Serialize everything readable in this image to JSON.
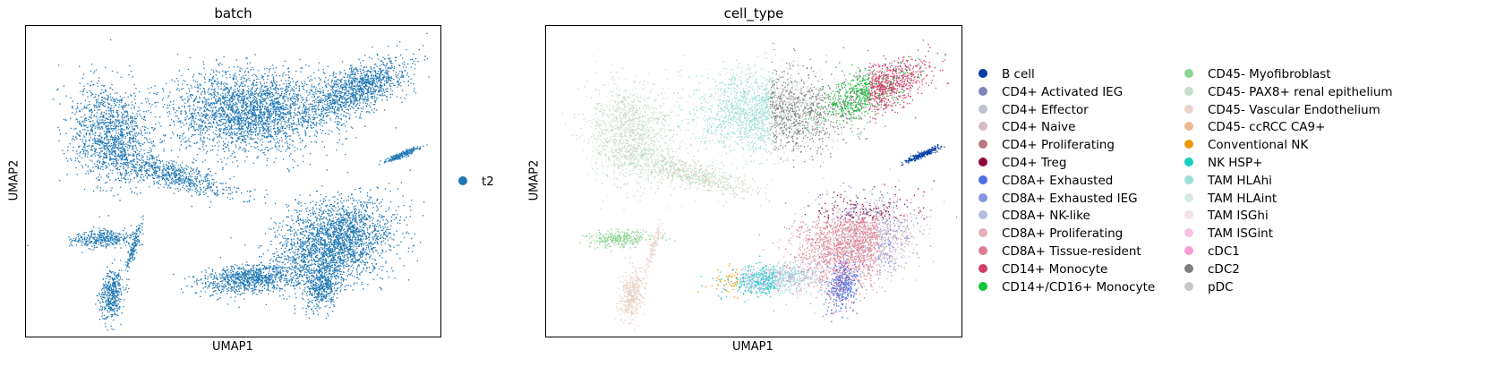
{
  "chart_data": [
    {
      "type": "scatter",
      "title": "batch",
      "xlabel": "UMAP1",
      "ylabel": "UMAP2",
      "grid": false,
      "legend_position": "right",
      "legend": [
        {
          "label": "t2",
          "color": "#1f77b4"
        }
      ]
    },
    {
      "type": "scatter",
      "title": "cell_type",
      "xlabel": "UMAP1",
      "ylabel": "UMAP2",
      "grid": false,
      "legend_position": "right",
      "legend": [
        {
          "label": "B cell",
          "color": "#023fa5"
        },
        {
          "label": "CD4+ Activated IEG",
          "color": "#7d87b9"
        },
        {
          "label": "CD4+ Effector",
          "color": "#bec1d4"
        },
        {
          "label": "CD4+ Naive",
          "color": "#d6bcc0"
        },
        {
          "label": "CD4+ Proliferating",
          "color": "#bb7784"
        },
        {
          "label": "CD4+ Treg",
          "color": "#8e063b"
        },
        {
          "label": "CD8A+ Exhausted",
          "color": "#4a6fe3"
        },
        {
          "label": "CD8A+ Exhausted IEG",
          "color": "#8595e1"
        },
        {
          "label": "CD8A+ NK-like",
          "color": "#b5bbe3"
        },
        {
          "label": "CD8A+ Proliferating",
          "color": "#e6afb9"
        },
        {
          "label": "CD8A+ Tissue-resident",
          "color": "#e07b91"
        },
        {
          "label": "CD14+ Monocyte",
          "color": "#d33f6a"
        },
        {
          "label": "CD14+/CD16+ Monocyte",
          "color": "#11c638"
        },
        {
          "label": "CD45- Myofibroblast",
          "color": "#8dd593"
        },
        {
          "label": "CD45- PAX8+ renal epithelium",
          "color": "#c6dec7"
        },
        {
          "label": "CD45- Vascular Endothelium",
          "color": "#ead3c6"
        },
        {
          "label": "CD45- ccRCC CA9+",
          "color": "#f0b98d"
        },
        {
          "label": "Conventional NK",
          "color": "#ef9708"
        },
        {
          "label": "NK HSP+",
          "color": "#0fcfc0"
        },
        {
          "label": "TAM HLAhi",
          "color": "#9cded6"
        },
        {
          "label": "TAM HLAint",
          "color": "#d5eae7"
        },
        {
          "label": "TAM ISGhi",
          "color": "#f3e1eb"
        },
        {
          "label": "TAM ISGint",
          "color": "#f6c4e1"
        },
        {
          "label": "cDC1",
          "color": "#f79cd4"
        },
        {
          "label": "cDC2",
          "color": "#7f7f7f"
        },
        {
          "label": "pDC",
          "color": "#c7c7c7"
        }
      ]
    }
  ]
}
